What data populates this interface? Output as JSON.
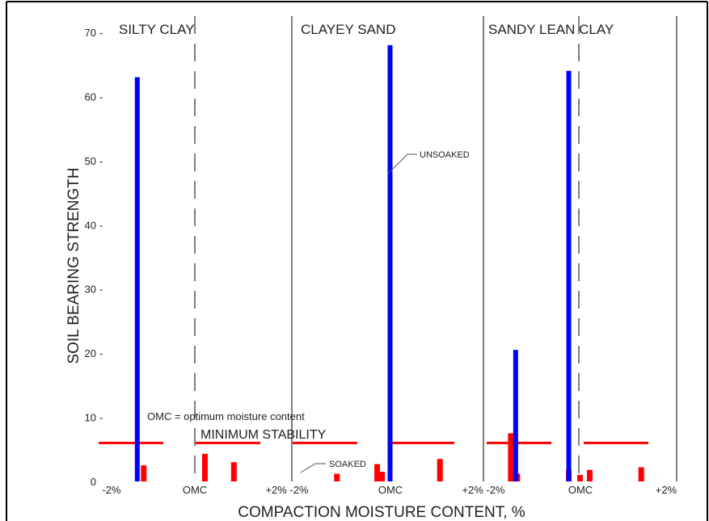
{
  "chart_data": {
    "type": "bar",
    "xlabel": "COMPACTION MOISTURE CONTENT, %",
    "ylabel": "SOIL BEARING STRENGTH",
    "ylim": [
      0,
      70
    ],
    "yticks": [
      0,
      10,
      20,
      30,
      40,
      50,
      60,
      70
    ],
    "x_tick_labels": [
      "-2%",
      "OMC",
      "+2%",
      "-2%",
      "OMC",
      "+2% -2%",
      "OMC",
      "+2%"
    ],
    "groups": [
      {
        "name": "SILTY CLAY",
        "unsoaked": [
          {
            "x": -1.8,
            "y": 63
          }
        ],
        "soaked": [
          {
            "x": -1.6,
            "y": 2.5
          },
          {
            "x": 0.3,
            "y": 4.3
          },
          {
            "x": 1.2,
            "y": 3.0
          }
        ]
      },
      {
        "name": "CLAYEY SAND",
        "unsoaked": [
          {
            "x": 0.05,
            "y": 68
          }
        ],
        "soaked": [
          {
            "x": -1.6,
            "y": 1.2
          },
          {
            "x": -0.35,
            "y": 2.7
          },
          {
            "x": -0.2,
            "y": 1.5
          },
          {
            "x": 1.6,
            "y": 3.5
          }
        ]
      },
      {
        "name": "SANDY LEAN CLAY",
        "unsoaked": [
          {
            "x": -2.0,
            "y": 20.5
          },
          {
            "x": -0.35,
            "y": 64
          }
        ],
        "soaked": [
          {
            "x": -2.15,
            "y": 7.5
          },
          {
            "x": -1.95,
            "y": 1.2
          },
          {
            "x": -0.35,
            "y": 1.8
          },
          {
            "x": 0.0,
            "y": 1.0
          },
          {
            "x": 0.3,
            "y": 1.8
          },
          {
            "x": 1.9,
            "y": 2.2
          }
        ]
      }
    ],
    "minimum_stability": 6,
    "annotations": {
      "note": "OMC = optimum moisture content",
      "minimum_stability": "MINIMUM STABILITY",
      "unsoaked": "UNSOAKED",
      "soaked": "SOAKED"
    },
    "colors": {
      "unsoaked": "#0000ff",
      "soaked": "#ff0000",
      "min_line": "#ff0000",
      "frame": "#000000",
      "divider": "#555555"
    }
  }
}
